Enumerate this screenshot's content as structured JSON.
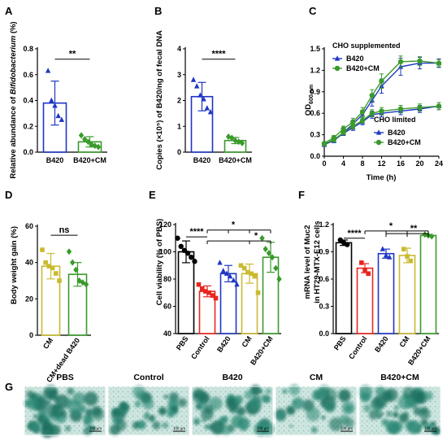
{
  "panel_labels": [
    "A",
    "B",
    "C",
    "D",
    "E",
    "F",
    "G"
  ],
  "colors": {
    "blue": "#1f36c4",
    "green": "#3a9a2c",
    "olive": "#c9bb2f",
    "red": "#e8251f",
    "black": "#000000"
  },
  "chart_data": [
    {
      "panel": "A",
      "type": "bar",
      "ylabel_prefix": "Relative abundance of ",
      "ylabel_italic": "Bifidobacterium",
      "ylabel_suffix": " (%)",
      "ylim": [
        0,
        0.8
      ],
      "yticks": [
        "0.0",
        "0.2",
        "0.4",
        "0.6",
        "0.8"
      ],
      "categories": [
        "B420",
        "B420+CM"
      ],
      "values": [
        0.38,
        0.08
      ],
      "errors": [
        0.17,
        0.04
      ],
      "points": [
        [
          0.63,
          0.4,
          0.36,
          0.28,
          0.25
        ],
        [
          0.13,
          0.1,
          0.08,
          0.06,
          0.05,
          0.04
        ]
      ],
      "colors": [
        "blue",
        "green"
      ],
      "markers": [
        "triangle",
        "diamond"
      ],
      "significance": [
        {
          "text": "**"
        }
      ]
    },
    {
      "panel": "B",
      "type": "bar",
      "ylabel": "Copies (×10⁵) of B420/ng of fecal DNA",
      "ylim": [
        0,
        4
      ],
      "yticks": [
        "0",
        "1",
        "2",
        "3",
        "4"
      ],
      "categories": [
        "B420",
        "B420+CM"
      ],
      "values": [
        2.15,
        0.45
      ],
      "errors": [
        0.55,
        0.12
      ],
      "points": [
        [
          2.8,
          2.55,
          2.2,
          2.05,
          1.7,
          1.55
        ],
        [
          0.6,
          0.55,
          0.45,
          0.4,
          0.35
        ]
      ],
      "colors": [
        "blue",
        "green"
      ],
      "markers": [
        "triangle",
        "diamond"
      ],
      "significance": [
        {
          "text": "****"
        }
      ]
    },
    {
      "panel": "C",
      "type": "line",
      "xlabel": "Time (h)",
      "ylabel": "OD600 nm",
      "xlim": [
        0,
        24
      ],
      "ylim": [
        0,
        1.5
      ],
      "xticks": [
        "0",
        "4",
        "8",
        "12",
        "16",
        "20",
        "24"
      ],
      "yticks": [
        "0.0",
        "0.3",
        "0.6",
        "0.9",
        "1.2",
        "1.5"
      ],
      "legend_groups": [
        "CHO supplemented",
        "CHO limited"
      ],
      "x": [
        0,
        2,
        4,
        6,
        8,
        10,
        12,
        16,
        20,
        24
      ],
      "series": [
        {
          "name": "B420",
          "group": 0,
          "color": "blue",
          "marker": "triangle",
          "values": [
            0.17,
            0.22,
            0.33,
            0.45,
            0.58,
            0.78,
            0.98,
            1.25,
            1.3,
            1.3
          ],
          "errors": [
            0.02,
            0.03,
            0.04,
            0.05,
            0.06,
            0.08,
            0.1,
            0.12,
            0.08,
            0.06
          ]
        },
        {
          "name": "B420+CM",
          "group": 0,
          "color": "green",
          "marker": "circle",
          "values": [
            0.18,
            0.26,
            0.38,
            0.48,
            0.62,
            0.85,
            1.05,
            1.32,
            1.33,
            1.3
          ],
          "errors": [
            0.02,
            0.03,
            0.04,
            0.05,
            0.06,
            0.08,
            0.1,
            0.08,
            0.06,
            0.05
          ]
        },
        {
          "name": "B420",
          "group": 1,
          "color": "blue",
          "marker": "triangle",
          "values": [
            0.16,
            0.22,
            0.32,
            0.4,
            0.48,
            0.58,
            0.6,
            0.63,
            0.66,
            0.7
          ],
          "errors": [
            0.02,
            0.03,
            0.03,
            0.04,
            0.04,
            0.05,
            0.05,
            0.05,
            0.05,
            0.05
          ]
        },
        {
          "name": "B420+CM",
          "group": 1,
          "color": "green",
          "marker": "circle",
          "values": [
            0.17,
            0.23,
            0.33,
            0.42,
            0.5,
            0.6,
            0.63,
            0.66,
            0.68,
            0.7
          ],
          "errors": [
            0.02,
            0.03,
            0.03,
            0.04,
            0.04,
            0.05,
            0.05,
            0.05,
            0.05,
            0.05
          ]
        }
      ]
    },
    {
      "panel": "D",
      "type": "bar",
      "ylabel": "Body weight gain (%)",
      "ylim": [
        0,
        60
      ],
      "yticks": [
        "0",
        "20",
        "40",
        "60"
      ],
      "categories": [
        "CM",
        "CM+dead B420"
      ],
      "values": [
        38,
        33.5
      ],
      "errors": [
        7,
        6.5
      ],
      "points": [
        [
          47,
          40,
          38,
          37,
          34,
          30
        ],
        [
          46,
          40,
          36,
          30,
          29,
          28
        ]
      ],
      "colors": [
        "olive",
        "green"
      ],
      "markers": [
        "square",
        "diamond"
      ],
      "significance": [
        {
          "text": "ns"
        }
      ]
    },
    {
      "panel": "E",
      "type": "bar",
      "ylabel": "Cell viability (% of PBS)",
      "ylim": [
        40,
        120
      ],
      "yticks": [
        "40",
        "60",
        "80",
        "100",
        "120"
      ],
      "categories": [
        "PBS",
        "Control",
        "B420",
        "CM",
        "B420+CM"
      ],
      "values": [
        100,
        71,
        84,
        84,
        96
      ],
      "errors": [
        8,
        4,
        6,
        7,
        11
      ],
      "points": [
        [
          110,
          104,
          101,
          99,
          96,
          93
        ],
        [
          76,
          73,
          71,
          70,
          68,
          66
        ],
        [
          92,
          86,
          84,
          82,
          79,
          76
        ],
        [
          90,
          88,
          85,
          84,
          82,
          70
        ],
        [
          110,
          102,
          99,
          96,
          88,
          80
        ]
      ],
      "colors": [
        "black",
        "red",
        "blue",
        "olive",
        "green"
      ],
      "markers": [
        "circle",
        "square",
        "triangle",
        "square",
        "diamond"
      ],
      "significance": [
        {
          "text": "****"
        },
        {
          "text": "*"
        },
        {
          "text": "*"
        }
      ]
    },
    {
      "panel": "F",
      "type": "bar",
      "ylabel_line1": "mRNA level of Muc2",
      "ylabel_line2": "in HT29-MTX-E12 cells",
      "ylim": [
        0.0,
        1.2
      ],
      "yticks": [
        "0.0",
        "0.3",
        "0.6",
        "0.9",
        "1.2"
      ],
      "categories": [
        "PBS",
        "Control",
        "B420",
        "CM",
        "B420+CM"
      ],
      "values": [
        1.0,
        0.72,
        0.88,
        0.86,
        1.08
      ],
      "errors": [
        0.03,
        0.05,
        0.05,
        0.08,
        0.01
      ],
      "points": [
        [
          1.03,
          1.0,
          0.98
        ],
        [
          0.78,
          0.7,
          0.66
        ],
        [
          0.93,
          0.86,
          0.84
        ],
        [
          0.93,
          0.85,
          0.8
        ],
        [
          1.09,
          1.08,
          1.07
        ]
      ],
      "colors": [
        "black",
        "red",
        "blue",
        "olive",
        "green"
      ],
      "markers": [
        "circle",
        "square",
        "triangle",
        "square",
        "diamond"
      ],
      "significance": [
        {
          "text": "****"
        },
        {
          "text": "*"
        },
        {
          "text": "**"
        }
      ]
    }
  ],
  "micrographs": {
    "labels": [
      "PBS",
      "Control",
      "B420",
      "CM",
      "B420+CM"
    ],
    "density": [
      0.9,
      0.55,
      0.75,
      0.45,
      0.8
    ],
    "scale_bar": "100 μm"
  }
}
